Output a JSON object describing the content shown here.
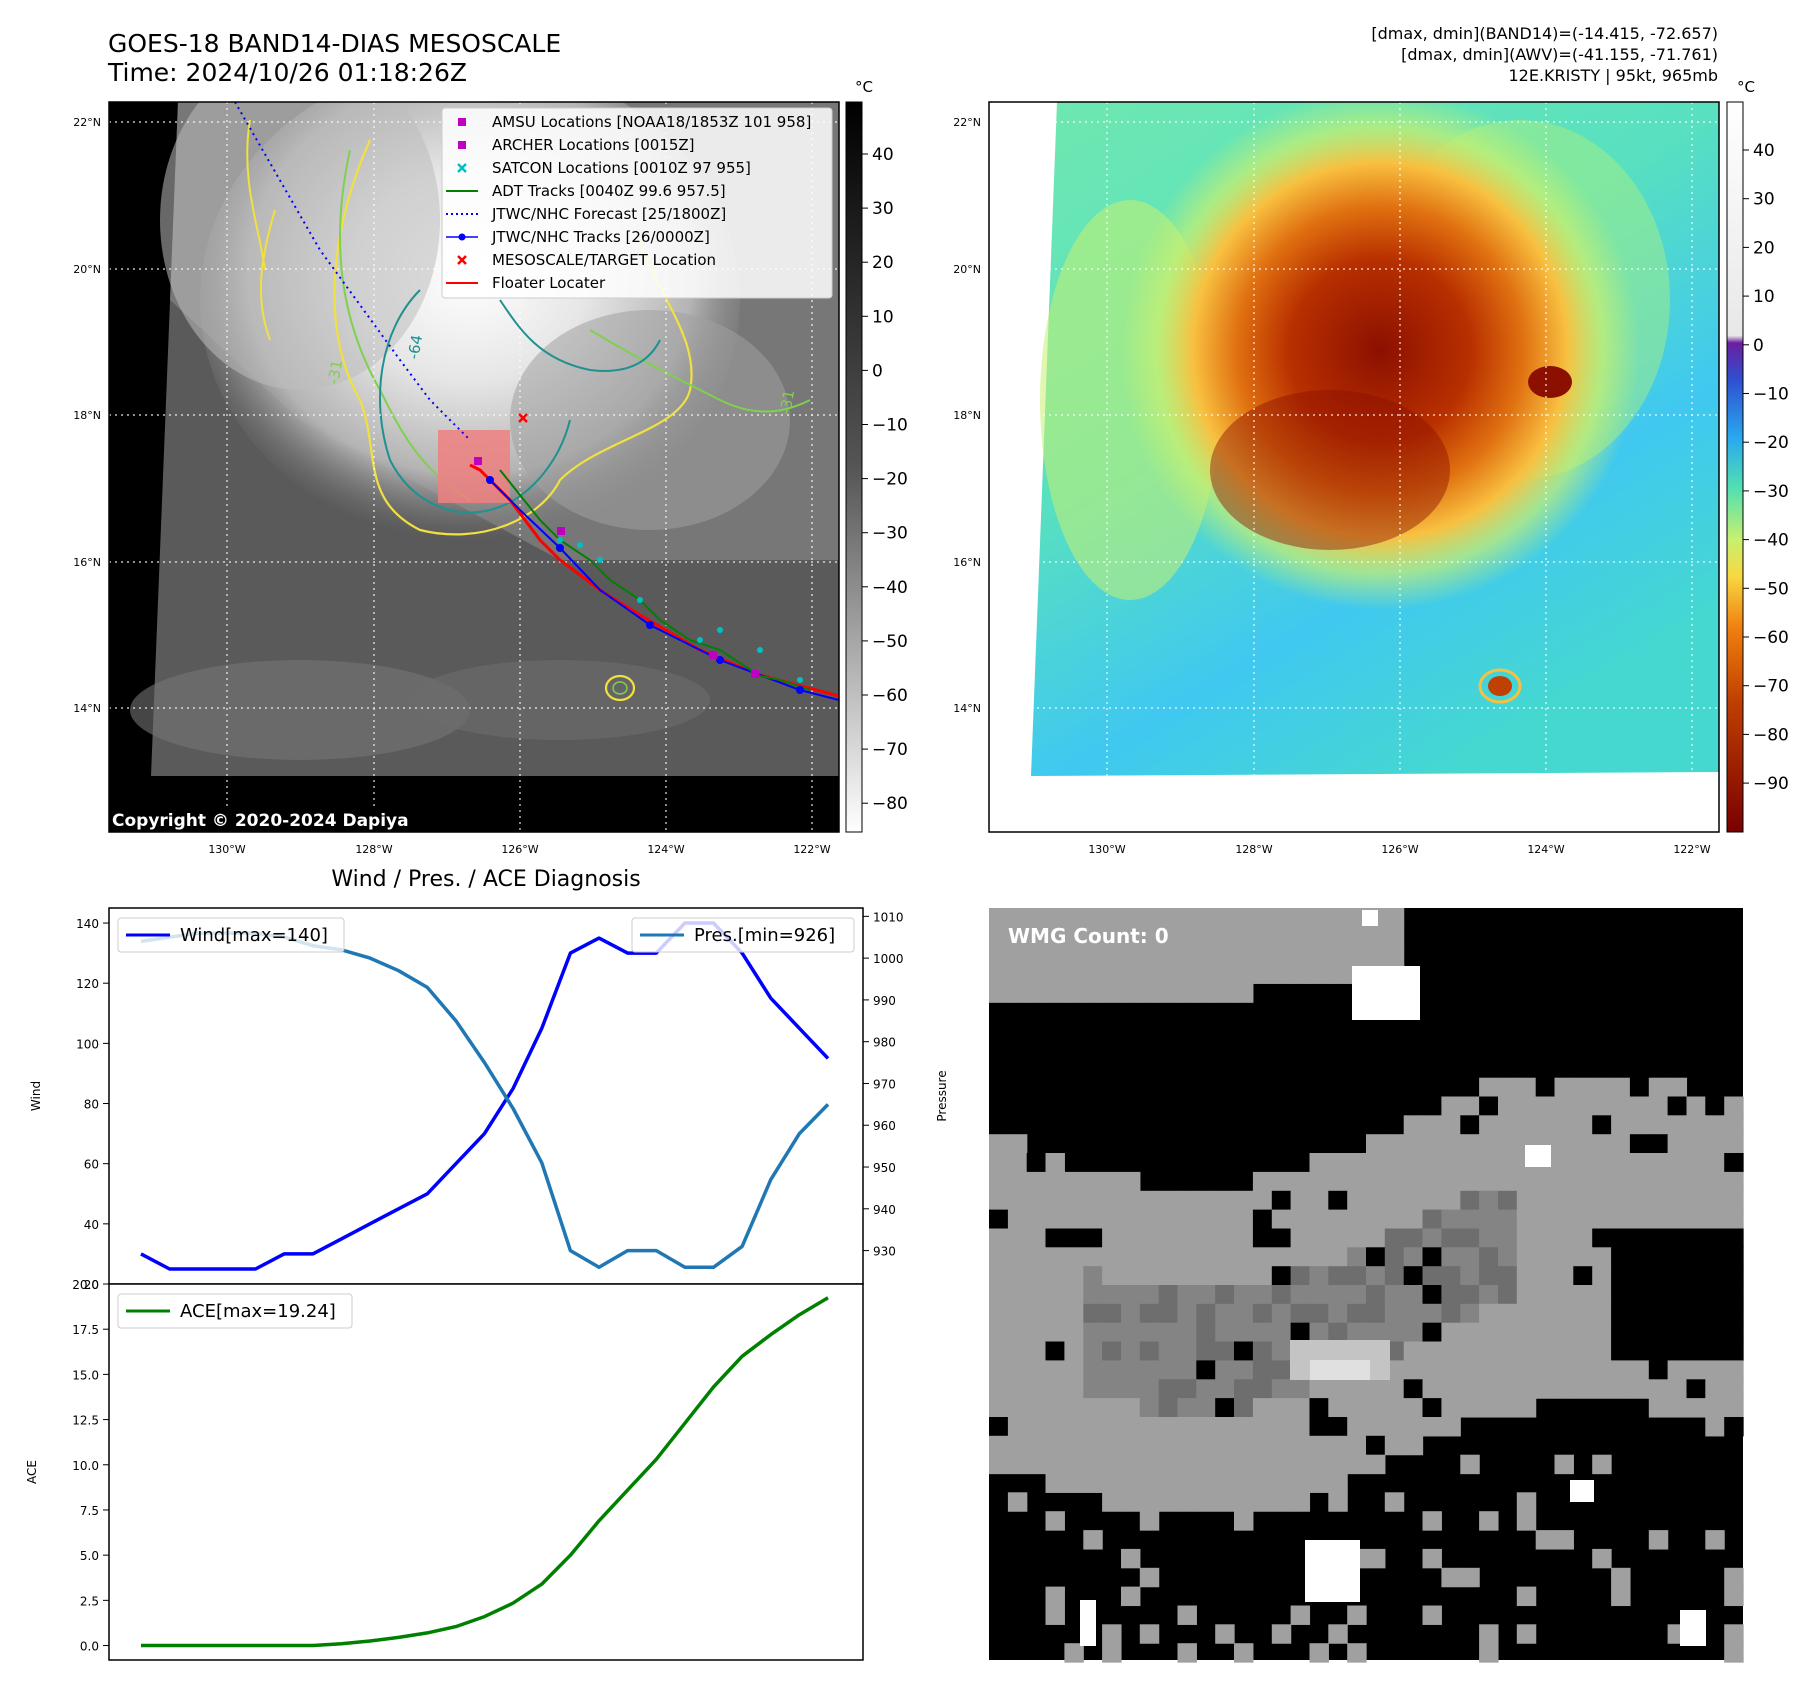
{
  "header": {
    "title_line1": "GOES-18 BAND14-DIAS MESOSCALE",
    "title_line2": "Time: 2024/10/26 01:18:26Z",
    "info_line1": "[dmax, dmin](BAND14)=(-14.415, -72.657)",
    "info_line2": "[dmax, dmin](AWV)=(-41.155, -71.761)",
    "info_line3": "12E.KRISTY | 95kt, 965mb"
  },
  "map_panel": {
    "lat_labels": [
      "22°N",
      "20°N",
      "18°N",
      "16°N",
      "14°N"
    ],
    "lon_labels": [
      "130°W",
      "128°W",
      "126°W",
      "124°W",
      "122°W"
    ],
    "copyright": "Copyright © 2020-2024 Dapiya",
    "contour_labels": [
      "-64",
      "-31",
      "-31"
    ],
    "legend": [
      {
        "label": "AMSU Locations [NOAA18/1853Z 101 958]",
        "color": "#c000c0",
        "marker": "square"
      },
      {
        "label": "ARCHER Locations [0015Z]",
        "color": "#c000c0",
        "marker": "square"
      },
      {
        "label": "SATCON Locations [0010Z 97 955]",
        "color": "#00c0c0",
        "marker": "x"
      },
      {
        "label": "ADT Tracks [0040Z 99.6 957.5]",
        "color": "#008000",
        "marker": "line"
      },
      {
        "label": "JTWC/NHC Forecast [25/1800Z]",
        "color": "#0000ff",
        "marker": "dotted"
      },
      {
        "label": "JTWC/NHC Tracks [26/0000Z]",
        "color": "#0000ff",
        "marker": "line-dot"
      },
      {
        "label": "MESOSCALE/TARGET Location",
        "color": "#ff0000",
        "marker": "x"
      },
      {
        "label": "Floater Locater",
        "color": "#ff0000",
        "marker": "line"
      }
    ]
  },
  "colorbar_gray": {
    "unit": "°C",
    "ticks": [
      "40",
      "30",
      "20",
      "10",
      "0",
      "−10",
      "−20",
      "−30",
      "−40",
      "−50",
      "−60",
      "−70",
      "−80"
    ]
  },
  "colorbar_color": {
    "unit": "°C",
    "ticks": [
      "40",
      "30",
      "20",
      "10",
      "0",
      "−10",
      "−20",
      "−30",
      "−40",
      "−50",
      "−60",
      "−70",
      "−80",
      "−90"
    ]
  },
  "wmg_panel": {
    "label": "WMG Count: 0"
  },
  "chart_data": [
    {
      "type": "line",
      "title": "Wind / Pres. / ACE Diagnosis",
      "ylabel": "Wind",
      "ylabel_right": "Pressure",
      "ylim": [
        20,
        145
      ],
      "ylim_right": [
        922,
        1012
      ],
      "yticks": [
        20,
        40,
        60,
        80,
        100,
        120,
        140
      ],
      "yticks_right": [
        930,
        940,
        950,
        960,
        970,
        980,
        990,
        1000,
        1010
      ],
      "x": [
        0,
        1,
        2,
        3,
        4,
        5,
        6,
        7,
        8,
        9,
        10,
        11,
        12,
        13,
        14,
        15,
        16,
        17,
        18,
        19,
        20,
        21,
        22,
        23,
        24
      ],
      "series": [
        {
          "name": "Wind[max=140]",
          "color": "#0000ff",
          "axis": "left",
          "values": [
            30,
            25,
            25,
            25,
            25,
            30,
            30,
            35,
            40,
            45,
            50,
            60,
            70,
            85,
            105,
            130,
            135,
            130,
            130,
            140,
            140,
            130,
            115,
            105,
            95
          ]
        },
        {
          "name": "Pres.[min=926]",
          "color": "#1f77b4",
          "axis": "right",
          "values": [
            1004,
            1005,
            1006,
            1006,
            1006,
            1005,
            1003,
            1002,
            1000,
            997,
            993,
            985,
            975,
            964,
            951,
            930,
            926,
            930,
            930,
            926,
            926,
            931,
            947,
            958,
            965
          ]
        }
      ]
    },
    {
      "type": "line",
      "title": "",
      "ylabel": "ACE",
      "ylim": [
        -0.8,
        20
      ],
      "yticks": [
        0.0,
        2.5,
        5.0,
        7.5,
        10.0,
        12.5,
        15.0,
        17.5,
        20.0
      ],
      "ytick_labels": [
        "0.0",
        "2.5",
        "5.0",
        "7.5",
        "10.0",
        "12.5",
        "15.0",
        "17.5",
        "20.0"
      ],
      "x": [
        0,
        1,
        2,
        3,
        4,
        5,
        6,
        7,
        8,
        9,
        10,
        11,
        12,
        13,
        14,
        15,
        16,
        17,
        18,
        19,
        20,
        21,
        22,
        23,
        24
      ],
      "series": [
        {
          "name": "ACE[max=19.24]",
          "color": "#008000",
          "axis": "left",
          "values": [
            0,
            0,
            0,
            0,
            0,
            0,
            0,
            0.1,
            0.25,
            0.45,
            0.7,
            1.05,
            1.6,
            2.35,
            3.4,
            5.0,
            6.9,
            8.6,
            10.3,
            12.3,
            14.3,
            16.0,
            17.2,
            18.3,
            19.24
          ]
        }
      ]
    }
  ]
}
